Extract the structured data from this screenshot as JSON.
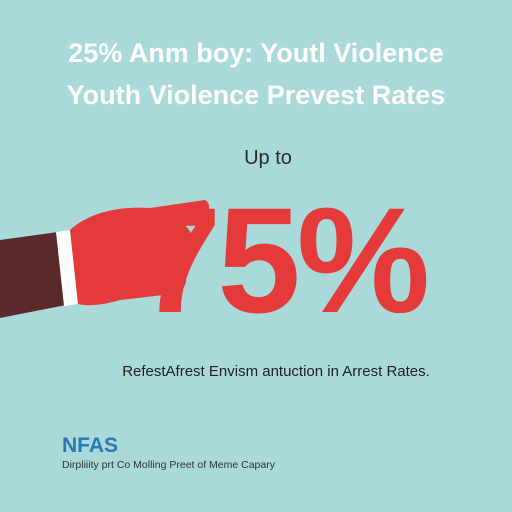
{
  "header": {
    "title_lines": [
      "25% Anm boy: Youtl Violence",
      "Youth Violence Prevest Rates"
    ]
  },
  "stat": {
    "lead": "Up to",
    "figure": "75%",
    "caption": "RefestAfrest Envism antuction in Arrest Rates."
  },
  "footer": {
    "logo": "NFAS",
    "text": "Dirpliiity prt Co Molling Preet of Meme Capary"
  }
}
